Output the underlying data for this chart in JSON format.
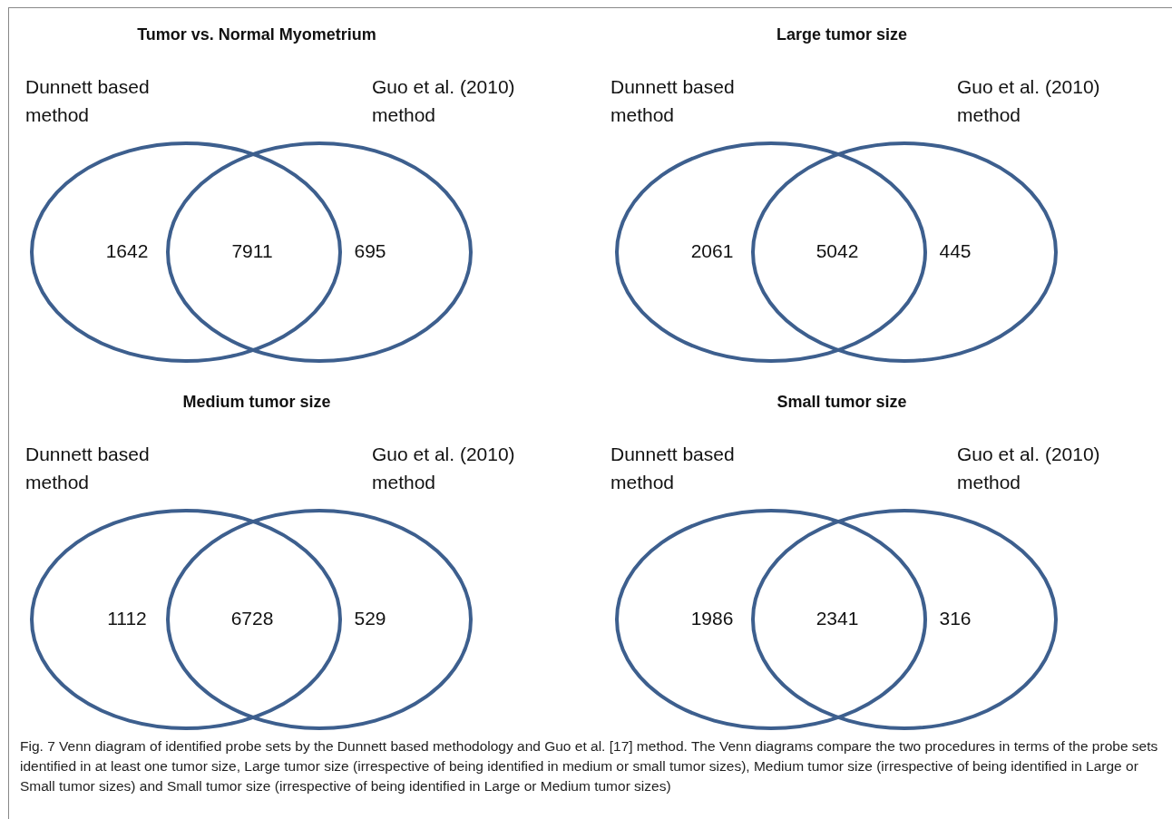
{
  "chart_data": [
    {
      "type": "other",
      "title": "Tumor vs. Normal Myometrium",
      "categories": [
        "Dunnett based method",
        null,
        "Guo et al. (2010) method"
      ],
      "values": [
        1642,
        7911,
        695
      ],
      "color": "#3d5f8e",
      "data_labels": true
    },
    {
      "type": "other",
      "title": "Large tumor size",
      "categories": [
        "Dunnett based method",
        null,
        "Guo et al. (2010) method"
      ],
      "values": [
        2061,
        5042,
        445
      ],
      "color": "#3d5f8e",
      "data_labels": true
    },
    {
      "type": "other",
      "title": "Medium tumor size",
      "categories": [
        "Dunnett based method",
        null,
        "Guo et al. (2010) method"
      ],
      "values": [
        1112,
        6728,
        529
      ],
      "color": "#3d5f8e",
      "data_labels": true
    },
    {
      "type": "other",
      "title": "Small tumor size",
      "categories": [
        "Dunnett based method",
        null,
        "Guo et al. (2010) method"
      ],
      "values": [
        1986,
        2341,
        316
      ],
      "color": "#3d5f8e",
      "data_labels": true,
      "annotations": [
        "Fig. 7 Venn diagram of identified probe sets by the Dunnett based methodology and Guo et al. [17] method. The Venn diagrams compare the two procedures in terms of the probe sets identified in at least one tumor size, Large tumor size (irrespective of being identified in medium or small tumor sizes), Medium tumor size (irrespective of being identified in Large or Small tumor sizes) and Small tumor size (irrespective of being identified in Large or Medium tumor sizes)"
      ]
    }
  ]
}
